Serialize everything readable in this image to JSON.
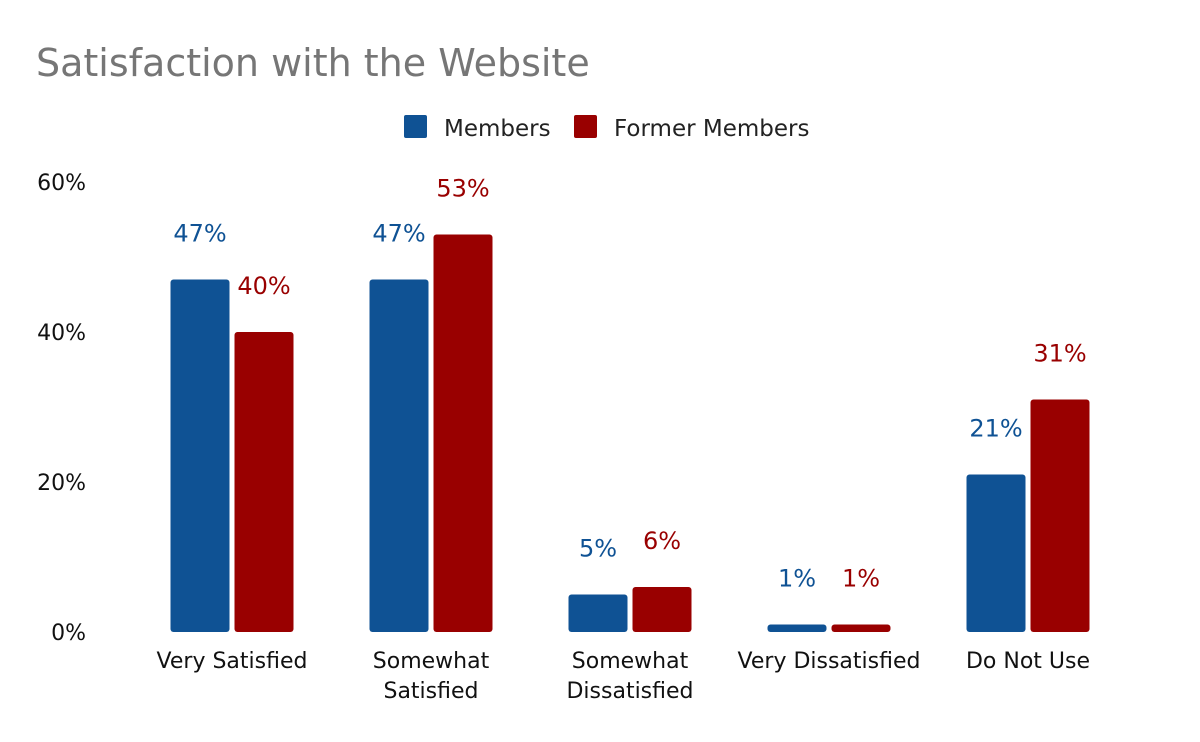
{
  "colors": {
    "members": "#0f5294",
    "former_members": "#990000",
    "title": "#767676"
  },
  "chart_data": {
    "type": "bar",
    "title": "Satisfaction with the Website",
    "xlabel": "",
    "ylabel": "",
    "ylim": [
      0,
      60
    ],
    "yticks": [
      "0%",
      "20%",
      "40%",
      "60%"
    ],
    "ytick_values": [
      0,
      20,
      40,
      60
    ],
    "grid": false,
    "legend_position": "top-center",
    "categories": [
      [
        "Very Satisfied"
      ],
      [
        "Somewhat",
        "Satisfied"
      ],
      [
        "Somewhat",
        "Dissatisfied"
      ],
      [
        "Very Dissatisfied"
      ],
      [
        "Do Not Use"
      ]
    ],
    "series": [
      {
        "name": "Members",
        "color": "#0f5294",
        "values": [
          47,
          47,
          5,
          1,
          21
        ],
        "labels": [
          "47%",
          "47%",
          "5%",
          "1%",
          "21%"
        ]
      },
      {
        "name": "Former Members",
        "color": "#990000",
        "values": [
          40,
          53,
          6,
          1,
          31
        ],
        "labels": [
          "40%",
          "53%",
          "6%",
          "1%",
          "31%"
        ]
      }
    ]
  }
}
